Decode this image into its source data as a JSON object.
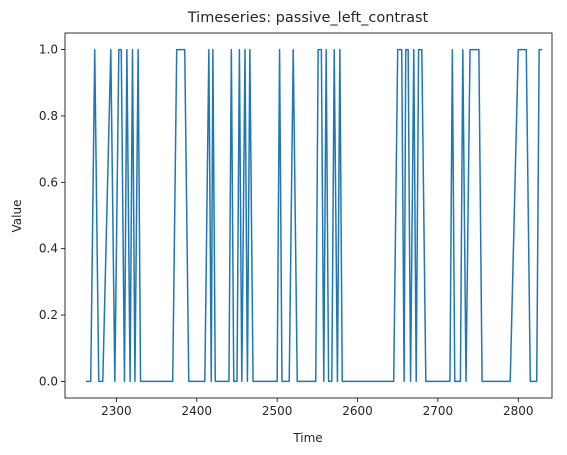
{
  "chart_data": {
    "type": "line",
    "title": "Timeseries: passive_left_contrast",
    "xlabel": "Time",
    "ylabel": "Value",
    "xlim": [
      2236,
      2842
    ],
    "ylim": [
      -0.05,
      1.05
    ],
    "grid": false,
    "line_color": "#1f77b4",
    "x_ticks": [
      2300,
      2400,
      2500,
      2600,
      2700,
      2800
    ],
    "y_ticks": [
      0.0,
      0.2,
      0.4,
      0.6,
      0.8,
      1.0
    ],
    "x_tick_labels": [
      "2300",
      "2400",
      "2500",
      "2600",
      "2700",
      "2800"
    ],
    "y_tick_labels": [
      "0.0",
      "0.2",
      "0.4",
      "0.6",
      "0.8",
      "1.0"
    ],
    "series": [
      {
        "x": [
          2263,
          2268,
          2273,
          2278,
          2283,
          2288,
          2293,
          2298,
          2303,
          2306,
          2310,
          2313,
          2317,
          2320,
          2323,
          2327,
          2330,
          2333,
          2340,
          2350,
          2360,
          2370,
          2375,
          2380,
          2385,
          2390,
          2395,
          2400,
          2405,
          2410,
          2415,
          2418,
          2420,
          2423,
          2426,
          2430,
          2435,
          2440,
          2443,
          2446,
          2450,
          2453,
          2456,
          2460,
          2463,
          2466,
          2470,
          2473,
          2476,
          2480,
          2485,
          2490,
          2495,
          2500,
          2503,
          2506,
          2510,
          2515,
          2520,
          2525,
          2530,
          2535,
          2540,
          2545,
          2548,
          2551,
          2555,
          2558,
          2561,
          2564,
          2568,
          2571,
          2575,
          2578,
          2581,
          2585,
          2588,
          2591,
          2594,
          2598,
          2601,
          2605,
          2610,
          2620,
          2630,
          2640,
          2645,
          2650,
          2652,
          2655,
          2658,
          2660,
          2663,
          2666,
          2670,
          2673,
          2676,
          2680,
          2685,
          2690,
          2695,
          2700,
          2705,
          2710,
          2715,
          2718,
          2721,
          2725,
          2728,
          2731,
          2735,
          2740,
          2745,
          2748,
          2751,
          2755,
          2760,
          2770,
          2780,
          2790,
          2800,
          2805,
          2810,
          2815,
          2820,
          2823,
          2826,
          2829
        ],
        "y": [
          0,
          0,
          1,
          0,
          0,
          0.5,
          1,
          0,
          1,
          1,
          0,
          1,
          0,
          1,
          0,
          1,
          0,
          0,
          0,
          0,
          0,
          0,
          1,
          1,
          1,
          0,
          0,
          0,
          0,
          0,
          1,
          0,
          1,
          0,
          0,
          0,
          0,
          0,
          1,
          0,
          0,
          1,
          0,
          1,
          0,
          1,
          0,
          0,
          0,
          0,
          0,
          0,
          0,
          0,
          1,
          0,
          0,
          0,
          1,
          0,
          0,
          0,
          0,
          0,
          0,
          1,
          1,
          0,
          1,
          0,
          0,
          1,
          0,
          1,
          0,
          0,
          0,
          0,
          0,
          0,
          0,
          0,
          0,
          0,
          0,
          0,
          0,
          1,
          1,
          1,
          0,
          1,
          1,
          0,
          1,
          0,
          1,
          1,
          0,
          0,
          0,
          0,
          0,
          0,
          0,
          1,
          0,
          0,
          0,
          1,
          0,
          1,
          1,
          1,
          1,
          0,
          0,
          0,
          0,
          0,
          1,
          1,
          1,
          0,
          0,
          0,
          1,
          1
        ]
      }
    ]
  }
}
